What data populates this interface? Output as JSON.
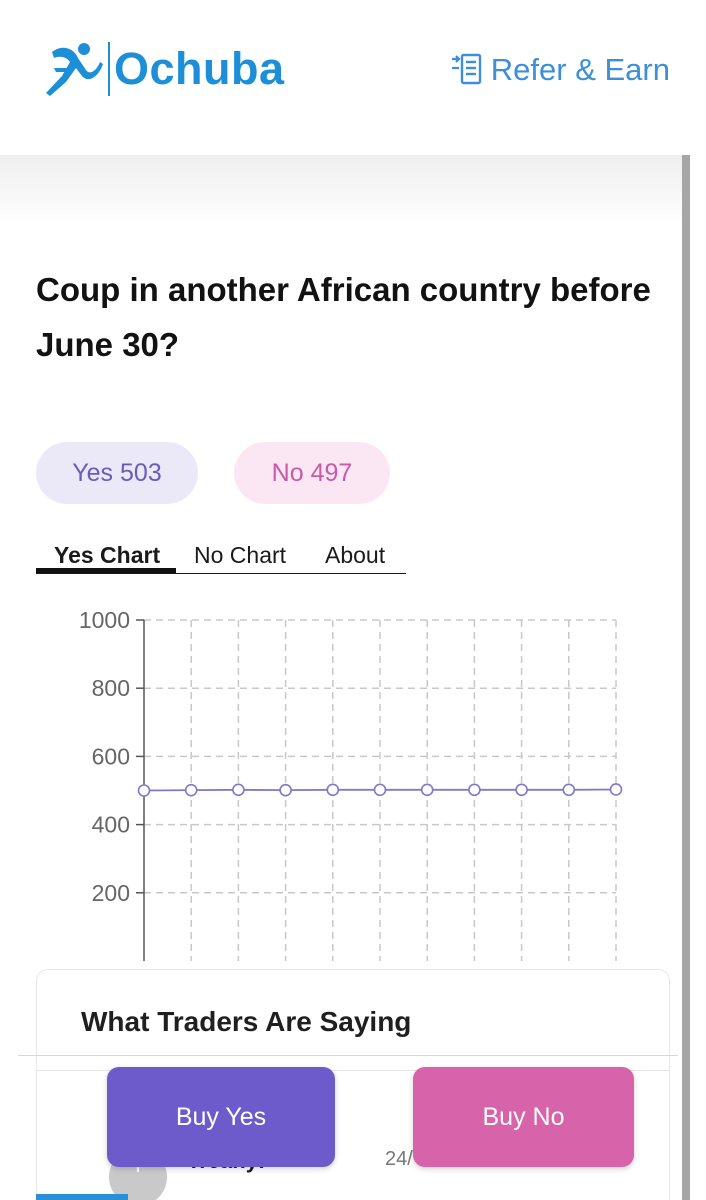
{
  "header": {
    "brand": "Ochuba",
    "refer_label": "Refer & Earn",
    "brand_color": "#1d8fd8",
    "icons": [
      "runner-logo-icon",
      "refer-document-icon"
    ]
  },
  "market": {
    "question": "Coup in another African country before June 30?",
    "yes": {
      "label": "Yes",
      "value": "503"
    },
    "no": {
      "label": "No",
      "value": "497"
    }
  },
  "tabs": [
    {
      "label": "Yes Chart",
      "active": true
    },
    {
      "label": "No Chart",
      "active": false
    },
    {
      "label": "About",
      "active": false
    }
  ],
  "chart_data": {
    "type": "line",
    "title": "",
    "xlabel": "",
    "ylabel": "",
    "ylim": [
      0,
      1000
    ],
    "yticks": [
      "1000",
      "800",
      "600",
      "400",
      "200"
    ],
    "ytick_values": [
      1000,
      800,
      600,
      400,
      200
    ],
    "grid": true,
    "series": [
      {
        "color": "#8179c7",
        "values": [
          500,
          501,
          502,
          501,
          502,
          502,
          502,
          502,
          502,
          502,
          503
        ]
      }
    ]
  },
  "traders": {
    "title": "What Traders Are Saying",
    "entry": {
      "avatar_letter": "T",
      "name": "Treany:",
      "date": "24/"
    }
  },
  "actions": {
    "buy_yes": "Buy Yes",
    "buy_no": "Buy No",
    "yes_color": "#6e5bcb",
    "no_color": "#d763ab"
  }
}
